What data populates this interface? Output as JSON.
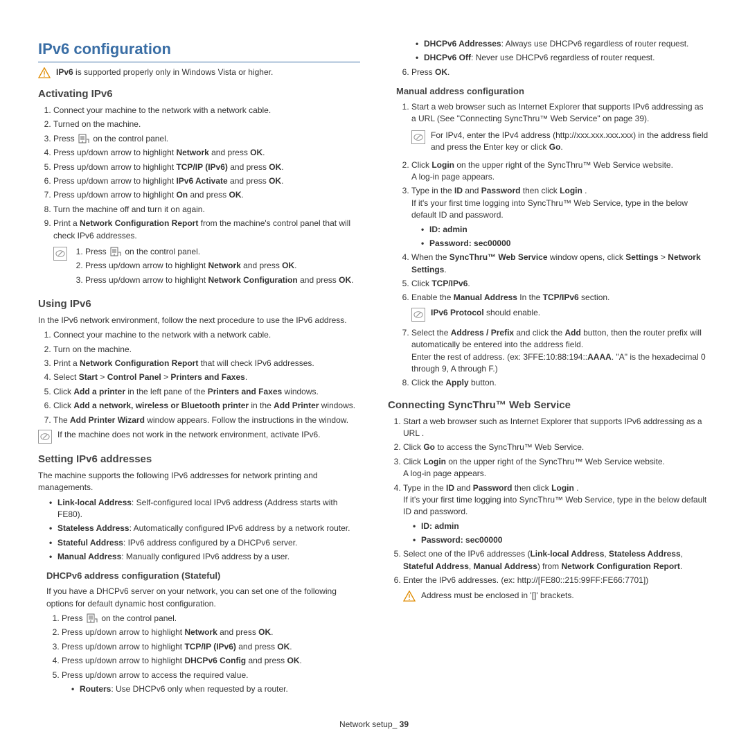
{
  "page": {
    "title": "IPv6 configuration",
    "footer_label": "Network setup_",
    "footer_page": "39"
  },
  "colors": {
    "heading": "#3a6ea5",
    "text": "#333333",
    "warn_stroke": "#e08b00",
    "note_stroke": "#888888"
  },
  "left": {
    "warn1": "<b>IPv6</b> is supported properly only in Windows Vista or higher.",
    "h_activating": "Activating IPv6",
    "act": [
      "Connect your machine to the network with a network cable.",
      "Turned on the machine.",
      "Press {MENU} on the control panel.",
      "Press up/down arrow to highlight <b>Network</b> and press <b>OK</b>.",
      "Press up/down arrow to highlight <b>TCP/IP (IPv6)</b> and press <b>OK</b>.",
      "Press up/down arrow to highlight <b>IPv6 Activate</b> and press <b>OK</b>.",
      "Press up/down arrow to highlight <b>On</b> and press <b>OK</b>.",
      "Turn the machine off and turn it on again.",
      "Print a <b>Network Configuration Report</b> from the machine's control panel that will check IPv6 addresses."
    ],
    "act_sub": [
      "Press {MENU} on the control panel.",
      "Press up/down arrow to highlight <b>Network</b> and press <b>OK</b>.",
      "Press up/down arrow to highlight <b>Network Configuration</b> and press <b>OK</b>."
    ],
    "h_using": "Using IPv6",
    "using_intro": "In the IPv6 network environment, follow the next procedure to use the IPv6 address.",
    "using": [
      "Connect your machine to the network with a network cable.",
      "Turn on the machine.",
      "Print a <b>Network Configuration Report</b> that will check IPv6 addresses.",
      "Select <b>Start</b> > <b>Control Panel</b> > <b>Printers and Faxes</b>.",
      "Click <b>Add a printer</b> in the left pane of the <b>Printers and Faxes</b> windows.",
      "Click <b>Add a network, wireless or Bluetooth printer</b> in the <b>Add Printer</b> windows.",
      "The <b>Add Printer Wizard</b> window appears. Follow the instructions in the window."
    ],
    "using_note": "If the machine does not work in the network environment, activate IPv6.",
    "h_setting": "Setting IPv6 addresses",
    "setting_intro": "The machine supports the following IPv6 addresses for network printing and managements.",
    "addr_types": [
      "<b>Link-local Address</b>: Self-configured local IPv6 address (Address starts with FE80).",
      "<b>Stateless Address</b>: Automatically configured IPv6 address by a network router.",
      "<b>Stateful Address</b>: IPv6 address configured by a DHCPv6 server.",
      "<b>Manual Address</b>: Manually configured IPv6 address by a user."
    ],
    "h_dhcp": "DHCPv6 address configuration (Stateful)",
    "dhcp_intro": "If you have a DHCPv6 server on your network, you can set one of the following options for default dynamic host configuration.",
    "dhcp": [
      "Press {MENU} on the control panel.",
      "Press up/down arrow to highlight <b>Network</b> and press <b>OK</b>.",
      "Press up/down arrow to highlight <b>TCP/IP (IPv6)</b> and press <b>OK</b>.",
      "Press up/down arrow to highlight <b>DHCPv6 Config</b> and press <b>OK</b>.",
      "Press up/down arrow to access the required value."
    ],
    "dhcp_opts_a": "<b>Routers</b>: Use DHCPv6 only when requested by a router."
  },
  "right": {
    "dhcp_opts_b": "<b>DHCPv6 Addresses</b>: Always use DHCPv6 regardless of router request.",
    "dhcp_opts_c": "<b>DHCPv6 Off</b>: Never use DHCPv6 regardless of router request.",
    "dhcp_6": "Press <b>OK</b>.",
    "h_manual": "Manual address configuration",
    "man1": "Start a web browser such as Internet Explorer that supports IPv6 addressing as a URL (See \"Connecting SyncThru™ Web Service\" on page 39).",
    "man1_note": "For IPv4, enter the IPv4 address (http://xxx.xxx.xxx.xxx) in the address field and press the Enter key or click <b>Go</b>.",
    "man2": "Click <b>Login</b> on the upper right of the SyncThru™ Web Service website.",
    "man2b": "A log-in page appears.",
    "man3": "Type in the <b>ID</b> and <b>Password</b> then click <b>Login</b> .",
    "man3b": "If it's your first time logging into SyncThru™ Web Service, type in the below default ID and password.",
    "id": "ID:  admin",
    "pw": "Password:  sec00000",
    "man4": "When the <b>SyncThru™ Web Service</b> window opens, click <b>Settings</b> > <b>Network Settings</b>.",
    "man5": "Click <b>TCP/IPv6</b>.",
    "man6": "Enable the <b>Manual Address</b> In the <b>TCP/IPv6</b> section.",
    "man6_note": "<b>IPv6 Protocol</b> should enable.",
    "man7": "Select the <b>Address / Prefix</b> and click the <b>Add</b> button, then the router prefix will automatically be entered into the address field.",
    "man7b": "Enter the rest of address. (ex: 3FFE:10:88:194::<b>AAAA</b>. \"A\" is the hexadecimal 0 through 9, A through F.)",
    "man8": "Click the <b>Apply</b> button.",
    "h_connect": "Connecting SyncThru™ Web Service",
    "con1": "Start a web browser such as Internet Explorer that supports IPv6 addressing as a URL .",
    "con2": "Click <b>Go</b> to access the SyncThru™ Web Service.",
    "con3": "Click <b>Login</b> on the upper right of the SyncThru™ Web Service website.",
    "con3b": "A log-in page appears.",
    "con4": "Type in the <b>ID</b> and <b>Password</b> then click <b>Login</b> .",
    "con4b": "If it's your first time logging into SyncThru™ Web Service, type in the below default ID and password.",
    "con5": "Select one of the IPv6 addresses (<b>Link-local Address</b>, <b>Stateless Address</b>, <b>Stateful Address</b>, <b>Manual Address</b>) from <b>Network Configuration Report</b>.",
    "con6": "Enter the IPv6 addresses. (ex: http://[FE80::215:99FF:FE66:7701])",
    "con6_note": "Address must be enclosed in '[]' brackets."
  }
}
